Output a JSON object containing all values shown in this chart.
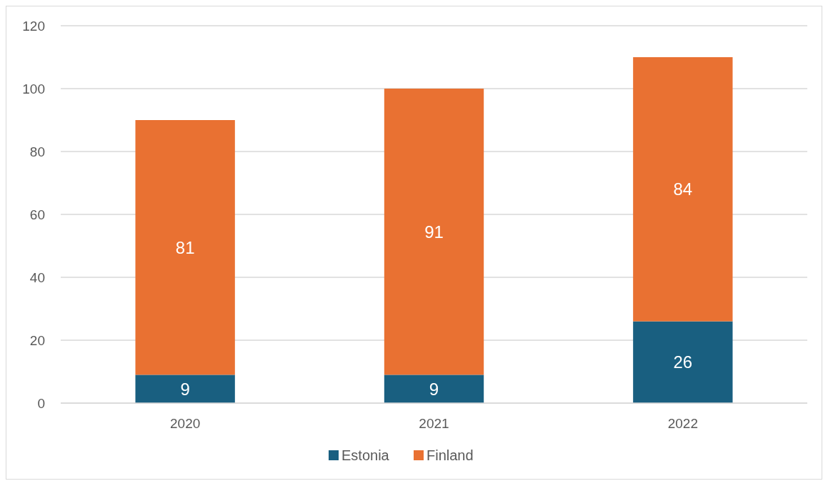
{
  "chart_data": {
    "type": "bar",
    "stacked": true,
    "categories": [
      "2020",
      "2021",
      "2022"
    ],
    "series": [
      {
        "name": "Estonia",
        "color": "#195f80",
        "values": [
          9,
          9,
          26
        ]
      },
      {
        "name": "Finland",
        "color": "#e97132",
        "values": [
          81,
          91,
          84
        ]
      }
    ],
    "ylim": [
      0,
      120
    ],
    "yticks": [
      0,
      20,
      40,
      60,
      80,
      100,
      120
    ],
    "grid": "y",
    "legend": "bottom",
    "data_labels": true
  }
}
